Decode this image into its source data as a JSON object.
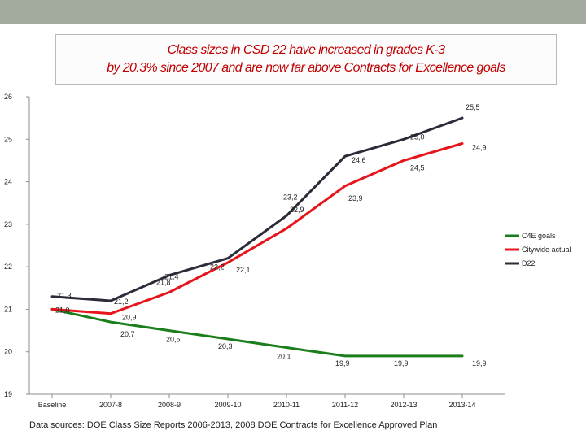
{
  "title_lines": [
    "Class sizes in CSD 22 have increased in grades K-3",
    "by 20.3% since 2007 and are now far above Contracts for Excellence goals"
  ],
  "source_note": "Data sources: DOE Class Size Reports 2006-2013, 2008 DOE Contracts for Excellence Approved Plan",
  "chart_data": {
    "type": "line",
    "categories": [
      "Baseline",
      "2007-8",
      "2008-9",
      "2009-10",
      "2010-11",
      "2011-12",
      "2012-13",
      "2013-14"
    ],
    "ylim": [
      19,
      26
    ],
    "yticks": [
      19,
      20,
      21,
      22,
      23,
      24,
      25,
      26
    ],
    "series": [
      {
        "name": "C4E goals",
        "color": "#1a7f1a",
        "values": [
          21.0,
          20.7,
          20.5,
          20.3,
          20.1,
          19.9,
          19.9,
          19.9
        ],
        "labels": [
          "",
          "20,7",
          "20,5",
          "20,3",
          "20,1",
          "19,9",
          "19,9",
          "19,9"
        ]
      },
      {
        "name": "Citywide actual",
        "color": "#e8141b",
        "values": [
          21.0,
          20.9,
          21.4,
          22.1,
          22.9,
          23.9,
          24.5,
          24.9
        ],
        "labels": [
          "21,0",
          "20,9",
          "21,4",
          "22,1",
          "22,9",
          "23,9",
          "24,5",
          "24,9"
        ]
      },
      {
        "name": "D22",
        "color": "#2b2b3a",
        "values": [
          21.3,
          21.2,
          21.8,
          22.2,
          23.2,
          24.6,
          25.0,
          25.5
        ],
        "labels": [
          "21,3",
          "21,2",
          "21,8",
          "22,2",
          "23,2",
          "24,6",
          "25,0",
          "25,5"
        ]
      }
    ],
    "legend_position": "right"
  }
}
